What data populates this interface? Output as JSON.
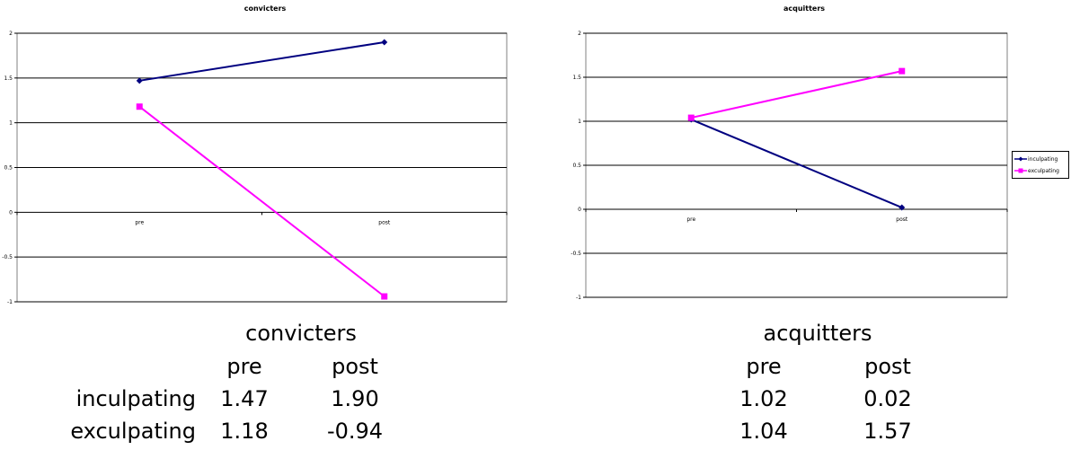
{
  "chart_data": [
    {
      "type": "line",
      "title": "convicters",
      "categories": [
        "pre",
        "post"
      ],
      "series": [
        {
          "name": "inculpating",
          "values": [
            1.47,
            1.9
          ],
          "color": "#000080",
          "marker": "diamond"
        },
        {
          "name": "exculpating",
          "values": [
            1.18,
            -0.94
          ],
          "color": "#FF00FF",
          "marker": "square"
        }
      ],
      "ylim": [
        -1,
        2
      ],
      "yticks": [
        "2",
        "1.5",
        "1",
        "0.5",
        "0",
        "-0.5",
        "-1"
      ],
      "grid": true,
      "legend": "none"
    },
    {
      "type": "line",
      "title": "acquitters",
      "categories": [
        "pre",
        "post"
      ],
      "series": [
        {
          "name": "inculpating",
          "values": [
            1.02,
            0.02
          ],
          "color": "#000080",
          "marker": "diamond"
        },
        {
          "name": "exculpating",
          "values": [
            1.04,
            1.57
          ],
          "color": "#FF00FF",
          "marker": "square"
        }
      ],
      "ylim": [
        -1,
        2
      ],
      "yticks": [
        "2",
        "1.5",
        "1",
        "0.5",
        "0",
        "-0.5",
        "-1"
      ],
      "grid": true,
      "legend": "right"
    }
  ],
  "tables": {
    "row_labels": [
      "inculpating",
      "exculpating"
    ],
    "convicters": {
      "title": "convicters",
      "headers": [
        "pre",
        "post"
      ],
      "rows": [
        [
          "1.47",
          "1.90"
        ],
        [
          "1.18",
          "-0.94"
        ]
      ]
    },
    "acquitters": {
      "title": "acquitters",
      "headers": [
        "pre",
        "post"
      ],
      "rows": [
        [
          "1.02",
          "0.02"
        ],
        [
          "1.04",
          "1.57"
        ]
      ]
    }
  }
}
